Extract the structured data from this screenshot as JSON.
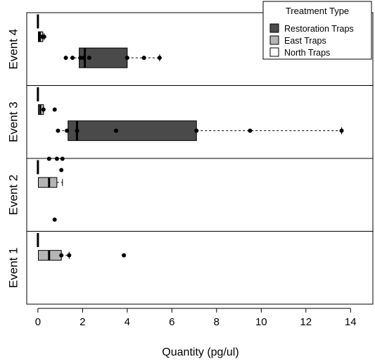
{
  "chart_data": {
    "type": "boxplot",
    "title": "",
    "xlabel": "Quantity (pg/ul)",
    "ylabel": "",
    "xlim": [
      -0.5,
      15.0
    ],
    "xticks": [
      0,
      2,
      4,
      6,
      8,
      10,
      12,
      14
    ],
    "legend": {
      "title": "Treatment Type",
      "position": "top-right",
      "entries": [
        {
          "name": "Restoration Traps",
          "color": "#4a4a4a"
        },
        {
          "name": "East Traps",
          "color": "#b5b5b5"
        },
        {
          "name": "North Traps",
          "color": "#ffffff"
        }
      ]
    },
    "panels": [
      {
        "label": "Event 4",
        "groups": [
          {
            "series": "North Traps",
            "box": [
              0,
              0,
              0
            ],
            "whisker": [
              0,
              0
            ],
            "points": []
          },
          {
            "series": "East Traps",
            "box": [
              0.02,
              0.08,
              0.22
            ],
            "whisker": [
              0.02,
              0.28
            ],
            "points": [
              0.2,
              0.28
            ]
          },
          {
            "series": "Restoration Traps",
            "box": [
              1.85,
              2.1,
              4.0
            ],
            "whisker": [
              1.25,
              5.45
            ],
            "points": [
              1.25,
              1.55,
              1.9,
              2.05,
              2.3,
              4.0,
              4.75,
              5.45
            ]
          }
        ]
      },
      {
        "label": "Event 3",
        "groups": [
          {
            "series": "North Traps",
            "box": [
              0,
              0,
              0
            ],
            "whisker": [
              0,
              0
            ],
            "points": []
          },
          {
            "series": "East Traps",
            "box": [
              0.02,
              0.1,
              0.25
            ],
            "whisker": [
              0.02,
              0.25
            ],
            "points": [
              0.25,
              0.75
            ]
          },
          {
            "series": "Restoration Traps",
            "box": [
              1.35,
              1.75,
              7.1
            ],
            "whisker": [
              0.9,
              13.6
            ],
            "points": [
              0.9,
              1.3,
              1.75,
              3.5,
              7.1,
              9.5,
              13.6
            ]
          }
        ]
      },
      {
        "label": "Event 2",
        "groups": [
          {
            "series": "North Traps",
            "box": [
              0,
              0,
              0
            ],
            "whisker": [
              0,
              0
            ],
            "points": []
          },
          {
            "series": "East Traps",
            "box": [
              0.02,
              0.5,
              0.85
            ],
            "whisker": [
              0.02,
              1.1
            ],
            "points": [
              0.5,
              0.85,
              1.1
            ]
          },
          {
            "series": "Restoration Traps",
            "box": [],
            "whisker": [],
            "points": [
              0.75,
              1.05
            ]
          }
        ]
      },
      {
        "label": "Event 1",
        "groups": [
          {
            "series": "North Traps",
            "box": [
              0,
              0,
              0
            ],
            "whisker": [
              0,
              0
            ],
            "points": []
          },
          {
            "series": "East Traps",
            "box": [
              0.02,
              0.5,
              1.05
            ],
            "whisker": [
              0.02,
              1.4
            ],
            "points": [
              1.05,
              1.4,
              3.85
            ]
          },
          {
            "series": "Restoration Traps",
            "box": [],
            "whisker": [],
            "points": []
          }
        ]
      }
    ]
  }
}
